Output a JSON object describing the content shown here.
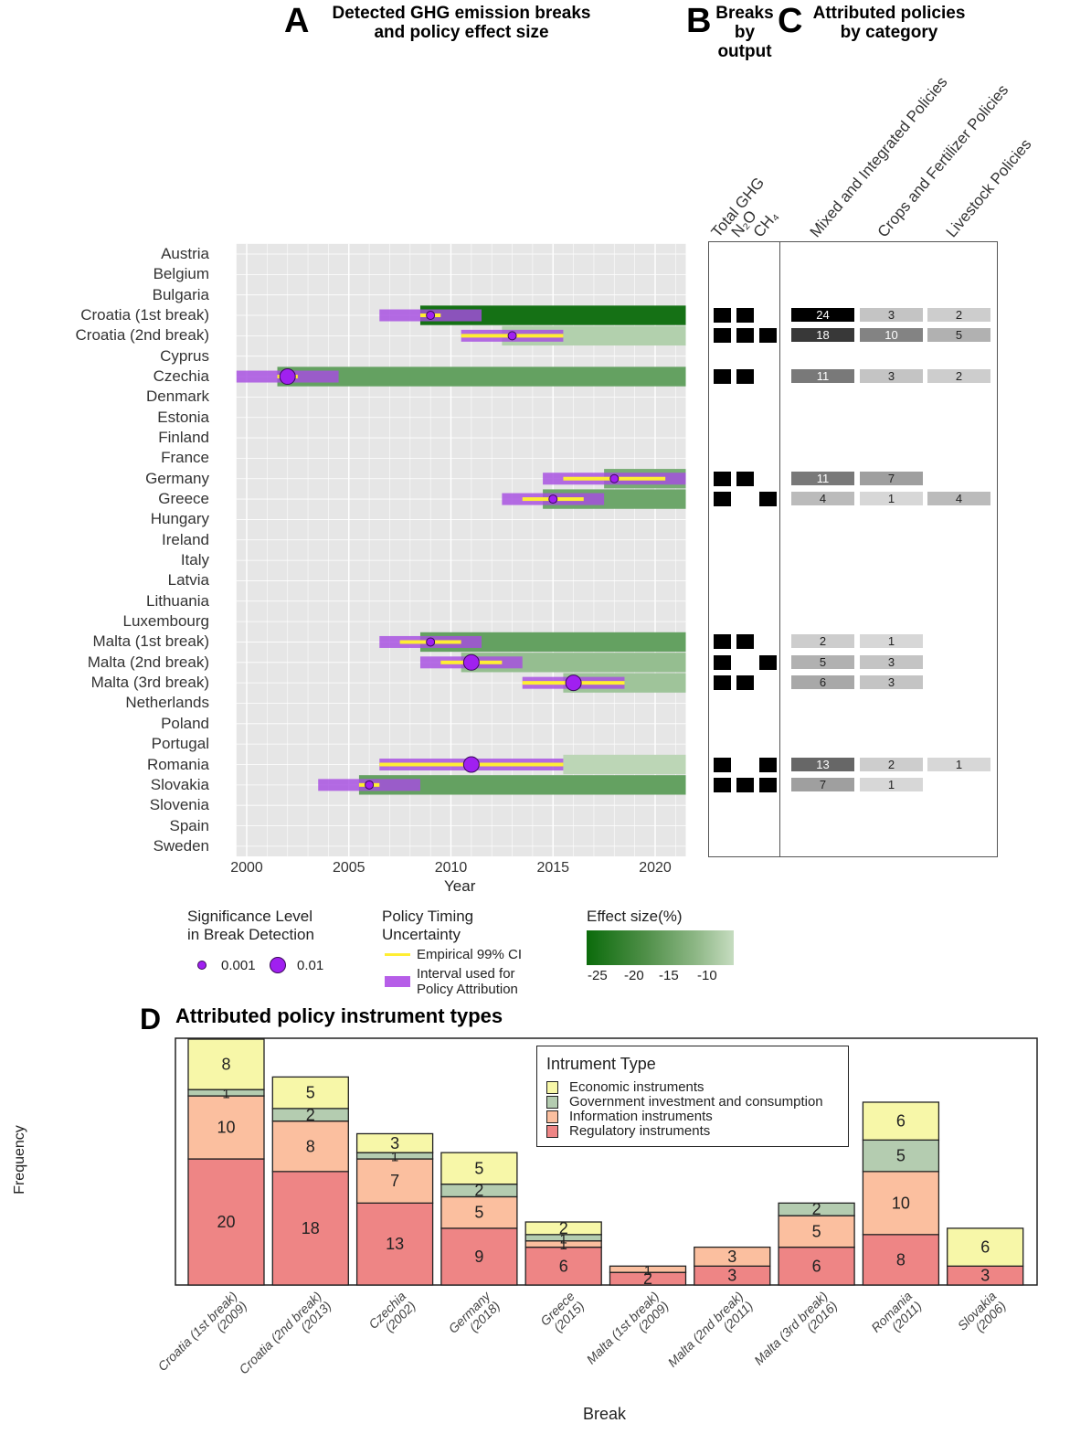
{
  "panelA": {
    "letter": "A",
    "title_line1": "Detected GHG emission breaks",
    "title_line2": "and policy effect size",
    "xlabel": "Year",
    "xticks": [
      "2000",
      "2005",
      "2010",
      "2015",
      "2020"
    ]
  },
  "panelB": {
    "letter": "B",
    "title_line1": "Breaks",
    "title_line2": "by",
    "title_line3": "output",
    "columns": [
      "Total GHG",
      "N₂O",
      "CH₄"
    ]
  },
  "panelC": {
    "letter": "C",
    "title_line1": "Attributed policies",
    "title_line2": "by category",
    "columns": [
      "Mixed and Integrated Policies",
      "Crops and Fertilizer Policies",
      "Livestock Policies"
    ]
  },
  "legend": {
    "significance_title1": "Significance Level",
    "significance_title2": "in Break Detection",
    "sig_small_label": "0.001",
    "sig_large_label": "0.01",
    "timing_title1": "Policy Timing",
    "timing_title2": "Uncertainty",
    "ci_label": "Empirical 99% CI",
    "interval_label1": "Interval used for",
    "interval_label2": "Policy Attribution",
    "effect_title": "Effect size(%)",
    "effect_ticks": [
      "-25",
      "-20",
      "-15",
      "-10"
    ],
    "colors": {
      "ci": "#ffee33",
      "interval": "#b65ee8",
      "point": "#a020f0",
      "effect_dark": "#0b6b0b",
      "effect_light": "#c6dcc0"
    }
  },
  "panelD": {
    "letter": "D",
    "title": "Attributed policy instrument types",
    "ylabel": "Frequency",
    "xlabel": "Break",
    "legend_title": "Intrument Type"
  },
  "chart_data": [
    {
      "type": "gantt",
      "title": "Detected GHG emission breaks and policy effect size",
      "xlabel": "Year",
      "xlim": [
        1999.5,
        2021.5
      ],
      "rows": [
        "Austria",
        "Belgium",
        "Bulgaria",
        "Croatia (1st break)",
        "Croatia (2nd break)",
        "Cyprus",
        "Czechia",
        "Denmark",
        "Estonia",
        "Finland",
        "France",
        "Germany",
        "Greece",
        "Hungary",
        "Ireland",
        "Italy",
        "Latvia",
        "Lithuania",
        "Luxembourg",
        "Malta (1st break)",
        "Malta (2nd break)",
        "Malta (3rd break)",
        "Netherlands",
        "Poland",
        "Portugal",
        "Romania",
        "Slovakia",
        "Slovenia",
        "Spain",
        "Sweden"
      ],
      "breaks": [
        {
          "row": "Croatia (1st break)",
          "effect_start": 2008.5,
          "effect_end": 2021.5,
          "effect_pct": -25,
          "interval": [
            2006.5,
            2011.5
          ],
          "ci": [
            2008.5,
            2009.5
          ],
          "year": 2009,
          "significance": "0.001"
        },
        {
          "row": "Croatia (2nd break)",
          "effect_start": 2012.5,
          "effect_end": 2021.5,
          "effect_pct": -9,
          "interval": [
            2010.5,
            2015.5
          ],
          "ci": [
            2010.5,
            2015.5
          ],
          "year": 2013,
          "significance": "0.001"
        },
        {
          "row": "Czechia",
          "effect_start": 2001.5,
          "effect_end": 2021.5,
          "effect_pct": -17,
          "interval": [
            1999.5,
            2004.5
          ],
          "ci": [
            2001.5,
            2002.5
          ],
          "year": 2002,
          "significance": "0.01"
        },
        {
          "row": "Germany",
          "effect_start": 2017.5,
          "effect_end": 2021.5,
          "effect_pct": -15,
          "interval": [
            2014.5,
            2021.5
          ],
          "ci": [
            2015.5,
            2020.5
          ],
          "year": 2018,
          "significance": "0.001"
        },
        {
          "row": "Greece",
          "effect_start": 2014.5,
          "effect_end": 2021.5,
          "effect_pct": -16,
          "interval": [
            2012.5,
            2017.5
          ],
          "ci": [
            2013.5,
            2016.5
          ],
          "year": 2015,
          "significance": "0.001"
        },
        {
          "row": "Malta (1st break)",
          "effect_start": 2008.5,
          "effect_end": 2021.5,
          "effect_pct": -17,
          "interval": [
            2006.5,
            2011.5
          ],
          "ci": [
            2007.5,
            2010.5
          ],
          "year": 2009,
          "significance": "0.001"
        },
        {
          "row": "Malta (2nd break)",
          "effect_start": 2010.5,
          "effect_end": 2021.5,
          "effect_pct": -12,
          "interval": [
            2008.5,
            2013.5
          ],
          "ci": [
            2009.5,
            2012.5
          ],
          "year": 2011,
          "significance": "0.01"
        },
        {
          "row": "Malta (3rd break)",
          "effect_start": 2015.5,
          "effect_end": 2021.5,
          "effect_pct": -11,
          "interval": [
            2013.5,
            2018.5
          ],
          "ci": [
            2013.5,
            2018.5
          ],
          "year": 2016,
          "significance": "0.01"
        },
        {
          "row": "Romania",
          "effect_start": 2015.5,
          "effect_end": 2021.5,
          "effect_pct": -8,
          "interval": [
            2006.5,
            2015.5
          ],
          "ci": [
            2006.5,
            2015.5
          ],
          "year": 2011,
          "significance": "0.01"
        },
        {
          "row": "Slovakia",
          "effect_start": 2005.5,
          "effect_end": 2021.5,
          "effect_pct": -17,
          "interval": [
            2003.5,
            2008.5
          ],
          "ci": [
            2005.5,
            2006.5
          ],
          "year": 2006,
          "significance": "0.001"
        }
      ]
    },
    {
      "type": "table",
      "title": "Breaks by output",
      "columns": [
        "Total GHG",
        "N2O",
        "CH4"
      ],
      "rows": [
        {
          "row": "Croatia (1st break)",
          "values": [
            1,
            1,
            0
          ]
        },
        {
          "row": "Croatia (2nd break)",
          "values": [
            1,
            1,
            1
          ]
        },
        {
          "row": "Czechia",
          "values": [
            1,
            1,
            0
          ]
        },
        {
          "row": "Germany",
          "values": [
            1,
            1,
            0
          ]
        },
        {
          "row": "Greece",
          "values": [
            1,
            0,
            1
          ]
        },
        {
          "row": "Malta (1st break)",
          "values": [
            1,
            1,
            0
          ]
        },
        {
          "row": "Malta (2nd break)",
          "values": [
            1,
            0,
            1
          ]
        },
        {
          "row": "Malta (3rd break)",
          "values": [
            1,
            1,
            0
          ]
        },
        {
          "row": "Romania",
          "values": [
            1,
            0,
            1
          ]
        },
        {
          "row": "Slovakia",
          "values": [
            1,
            1,
            1
          ]
        }
      ]
    },
    {
      "type": "heatmap",
      "title": "Attributed policies by category",
      "columns": [
        "Mixed and Integrated Policies",
        "Crops and Fertilizer Policies",
        "Livestock Policies"
      ],
      "rows": [
        {
          "row": "Croatia (1st break)",
          "values": [
            24,
            3,
            2
          ]
        },
        {
          "row": "Croatia (2nd break)",
          "values": [
            18,
            10,
            5
          ]
        },
        {
          "row": "Czechia",
          "values": [
            11,
            3,
            2
          ]
        },
        {
          "row": "Germany",
          "values": [
            11,
            7,
            null
          ]
        },
        {
          "row": "Greece",
          "values": [
            4,
            1,
            4
          ]
        },
        {
          "row": "Malta (1st break)",
          "values": [
            2,
            1,
            null
          ]
        },
        {
          "row": "Malta (2nd break)",
          "values": [
            5,
            3,
            null
          ]
        },
        {
          "row": "Malta (3rd break)",
          "values": [
            6,
            3,
            null
          ]
        },
        {
          "row": "Romania",
          "values": [
            13,
            2,
            1
          ]
        },
        {
          "row": "Slovakia",
          "values": [
            7,
            1,
            null
          ]
        }
      ]
    },
    {
      "type": "bar",
      "stacked": true,
      "title": "Attributed policy instrument types",
      "xlabel": "Break",
      "ylabel": "Frequency",
      "ylim": [
        0,
        39
      ],
      "legend": "top-right",
      "categories": [
        "Croatia (1st break)\n(2009)",
        "Croatia (2nd break)\n(2013)",
        "Czechia\n(2002)",
        "Germany\n(2018)",
        "Greece\n(2015)",
        "Malta (1st break)\n(2009)",
        "Malta (2nd break)\n(2011)",
        "Malta (3rd break)\n(2016)",
        "Romania\n(2011)",
        "Slovakia\n(2006)"
      ],
      "series": [
        {
          "name": "Regulatory instruments",
          "color": "#ee8585",
          "values": [
            20,
            18,
            13,
            9,
            6,
            2,
            3,
            6,
            8,
            3
          ]
        },
        {
          "name": "Information instruments",
          "color": "#fbbf9f",
          "values": [
            10,
            8,
            7,
            5,
            1,
            1,
            3,
            5,
            10,
            0
          ]
        },
        {
          "name": "Government investment and consumption",
          "color": "#b4ccb0",
          "values": [
            1,
            2,
            1,
            2,
            1,
            0,
            0,
            2,
            5,
            0
          ]
        },
        {
          "name": "Economic instruments",
          "color": "#f7f7a8",
          "values": [
            8,
            5,
            3,
            5,
            2,
            0,
            0,
            0,
            6,
            6
          ]
        }
      ]
    }
  ]
}
